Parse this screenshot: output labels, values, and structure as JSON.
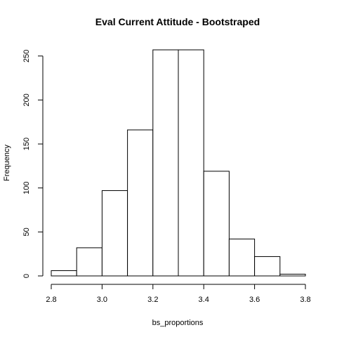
{
  "chart_data": {
    "type": "bar",
    "title": "Eval Current Attitude - Bootstraped",
    "xlabel": "bs_proportions",
    "ylabel": "Frequency",
    "xlim": [
      2.8,
      3.8
    ],
    "ylim": [
      0,
      257
    ],
    "bins": [
      {
        "start": 2.8,
        "end": 2.9,
        "count": 6
      },
      {
        "start": 2.9,
        "end": 3.0,
        "count": 32
      },
      {
        "start": 3.0,
        "end": 3.1,
        "count": 97
      },
      {
        "start": 3.1,
        "end": 3.2,
        "count": 166
      },
      {
        "start": 3.2,
        "end": 3.3,
        "count": 257
      },
      {
        "start": 3.3,
        "end": 3.4,
        "count": 257
      },
      {
        "start": 3.4,
        "end": 3.5,
        "count": 119
      },
      {
        "start": 3.5,
        "end": 3.6,
        "count": 42
      },
      {
        "start": 3.6,
        "end": 3.7,
        "count": 22
      },
      {
        "start": 3.7,
        "end": 3.8,
        "count": 2
      }
    ],
    "x_ticks": [
      2.8,
      3.0,
      3.2,
      3.4,
      3.6,
      3.8
    ],
    "x_tick_labels": [
      "2.8",
      "3.0",
      "3.2",
      "3.4",
      "3.6",
      "3.8"
    ],
    "y_ticks": [
      0,
      50,
      100,
      150,
      200,
      250
    ],
    "y_tick_labels": [
      "0",
      "50",
      "100",
      "150",
      "200",
      "250"
    ],
    "grid": false,
    "legend": "none"
  }
}
